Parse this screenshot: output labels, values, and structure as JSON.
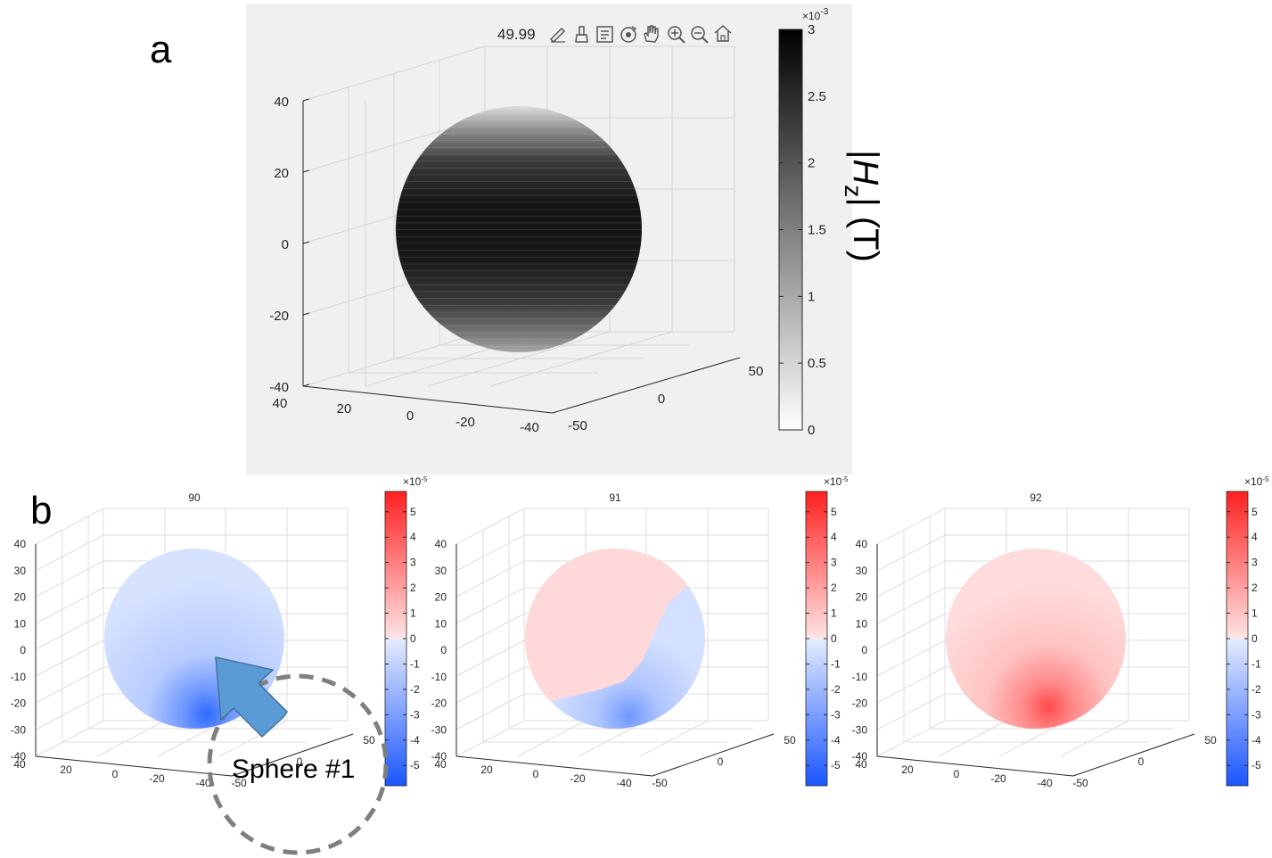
{
  "panel_a": {
    "letter": "a",
    "toolbar": {
      "readout": "49.99",
      "icons": [
        "edit-plot-icon",
        "brush-icon",
        "data-tips-icon",
        "rotate-3d-icon",
        "pan-hand-icon",
        "zoom-in-icon",
        "zoom-out-icon",
        "home-icon"
      ]
    },
    "chart_data": {
      "type": "surface",
      "colormap": "gray-reversed",
      "background": "#f0f0f0",
      "zlim": [
        -40,
        40
      ],
      "xlim": [
        -40,
        40
      ],
      "ylim": [
        -50,
        50
      ],
      "z_ticks": [
        "40",
        "20",
        "0",
        "-20",
        "-40"
      ],
      "x_ticks": [
        "40",
        "20",
        "0",
        "-20",
        "-40"
      ],
      "y_ticks": [
        "-50",
        "0",
        "50"
      ],
      "colorbar": {
        "exponent_label": "×10",
        "exponent_power": "-3",
        "ticks": [
          "3",
          "2.5",
          "2",
          "1.5",
          "1",
          "0.5",
          "0"
        ],
        "min": 0,
        "max": 3
      },
      "colorbar_label": {
        "H": "H",
        "sub": "z",
        "unit": "(T)"
      },
      "grid": true
    }
  },
  "panel_b": {
    "letter": "b",
    "colorbar_ticks": [
      "5",
      "4",
      "3",
      "2",
      "1",
      "0",
      "-1",
      "-2",
      "-3",
      "-4",
      "-5"
    ],
    "colorbar_exponent": {
      "base": "×10",
      "power": "-5"
    },
    "z_ticks": [
      "40",
      "30",
      "20",
      "10",
      "0",
      "-10",
      "-20",
      "-30",
      "-40"
    ],
    "x_ticks": [
      "40",
      "20",
      "0",
      "-20",
      "-40"
    ],
    "y_ticks": [
      "-50",
      "0",
      "50"
    ],
    "colors": {
      "positive": "#ff2a2a",
      "negative": "#2060ff",
      "zero": "#ffffff"
    },
    "chart_data": [
      {
        "type": "surface",
        "title": "90",
        "zlim": [
          -40,
          40
        ],
        "clim": [
          -5.8,
          5.8
        ],
        "field_sign": "negative",
        "peak_value": -5.0
      },
      {
        "type": "surface",
        "title": "91",
        "zlim": [
          -40,
          40
        ],
        "clim": [
          -5.8,
          5.8
        ],
        "field_sign": "mixed",
        "peak_value": -3.5
      },
      {
        "type": "surface",
        "title": "92",
        "zlim": [
          -40,
          40
        ],
        "clim": [
          -5.8,
          5.8
        ],
        "field_sign": "positive",
        "peak_value": 3.5
      }
    ],
    "annotation": {
      "label": "Sphere #1",
      "arrow_color": "#5b9bd5"
    }
  }
}
